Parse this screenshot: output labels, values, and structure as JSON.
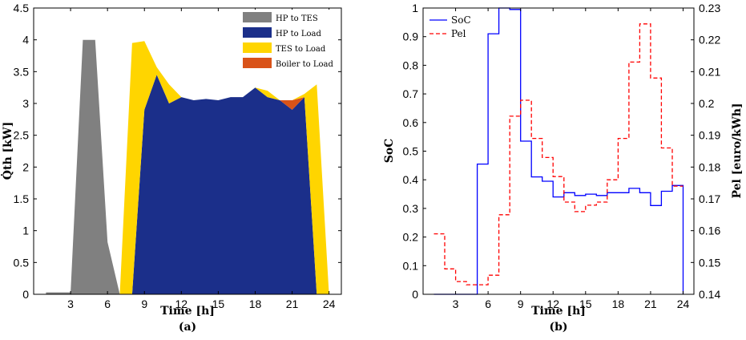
{
  "chart_data": [
    {
      "type": "area",
      "caption": "(a)",
      "xlabel": "Time [h]",
      "ylabel": "Q̇th [kW]",
      "xlim": [
        0,
        25
      ],
      "ylim": [
        0,
        4.5
      ],
      "xticks": [
        3,
        6,
        9,
        12,
        15,
        18,
        21,
        24
      ],
      "yticks": [
        0,
        0.5,
        1,
        1.5,
        2,
        2.5,
        3,
        3.5,
        4,
        4.5
      ],
      "legend_position": "top-right",
      "colors": {
        "hp_tes": "#808080",
        "hp_load": "#1b2f8a",
        "tes_load": "#ffd500",
        "boiler_load": "#d95319"
      },
      "series": [
        {
          "name": "HP to TES",
          "x": [
            1,
            2,
            3,
            4,
            5,
            6,
            7,
            8,
            9,
            10,
            11,
            12,
            13,
            14,
            15,
            16,
            17,
            18,
            19,
            20,
            21,
            22,
            23,
            24
          ],
          "values": [
            0.03,
            0.03,
            0.03,
            4.0,
            4.0,
            0.82,
            0,
            0,
            0,
            0,
            0,
            0,
            0,
            0,
            0,
            0,
            0,
            0,
            0,
            0,
            0,
            0,
            0,
            0
          ]
        },
        {
          "name": "HP to Load",
          "x": [
            1,
            2,
            3,
            4,
            5,
            6,
            7,
            8,
            9,
            10,
            11,
            12,
            13,
            14,
            15,
            16,
            17,
            18,
            19,
            20,
            21,
            22,
            23,
            24
          ],
          "values": [
            0,
            0,
            0,
            0,
            0,
            0,
            0,
            0,
            2.9,
            3.45,
            3.0,
            3.1,
            3.05,
            3.07,
            3.05,
            3.1,
            3.1,
            3.25,
            3.1,
            3.05,
            2.9,
            3.1,
            0,
            0
          ]
        },
        {
          "name": "TES to Load",
          "x": [
            1,
            2,
            3,
            4,
            5,
            6,
            7,
            8,
            9,
            10,
            11,
            12,
            13,
            14,
            15,
            16,
            17,
            18,
            19,
            20,
            21,
            22,
            23,
            24
          ],
          "values": [
            0,
            0,
            0,
            0,
            0,
            0,
            0,
            3.95,
            1.08,
            0.12,
            0.3,
            0,
            0,
            0,
            0,
            0,
            0,
            0,
            0.1,
            0,
            0,
            0.05,
            3.3,
            0
          ]
        },
        {
          "name": "Boiler to Load",
          "x": [
            1,
            2,
            3,
            4,
            5,
            6,
            7,
            8,
            9,
            10,
            11,
            12,
            13,
            14,
            15,
            16,
            17,
            18,
            19,
            20,
            21,
            22,
            23,
            24
          ],
          "values": [
            0,
            0,
            0,
            0,
            0,
            0,
            0,
            0,
            0,
            0,
            0,
            0,
            0,
            0,
            0,
            0,
            0,
            0,
            0,
            0,
            0.15,
            0,
            0,
            0
          ]
        }
      ]
    },
    {
      "type": "line",
      "caption": "(b)",
      "xlabel": "Time [h]",
      "ylabel": "SoC",
      "ylabel_right": "Pel [euro/kWh]",
      "xlim": [
        0,
        25
      ],
      "ylim": [
        0,
        1
      ],
      "ylim_right": [
        0.14,
        0.23
      ],
      "xticks": [
        3,
        6,
        9,
        12,
        15,
        18,
        21,
        24
      ],
      "yticks": [
        0,
        0.1,
        0.2,
        0.3,
        0.4,
        0.5,
        0.6,
        0.7,
        0.8,
        0.9,
        1
      ],
      "yticks_right": [
        "0.14",
        "0.15",
        "0.16",
        "0.17",
        "0.18",
        "0.19",
        "0.2",
        "0.21",
        "0.22",
        "0.23"
      ],
      "legend_position": "top-left",
      "series": [
        {
          "name": "SoC",
          "axis": "left",
          "style": "solid stairs",
          "color": "#0000ff",
          "x": [
            1,
            2,
            3,
            4,
            5,
            6,
            7,
            8,
            9,
            10,
            11,
            12,
            13,
            14,
            15,
            16,
            17,
            18,
            19,
            20,
            21,
            22,
            23,
            24
          ],
          "values": [
            0,
            0,
            0,
            0,
            0.455,
            0.91,
            1.0,
            0.995,
            0.535,
            0.41,
            0.395,
            0.34,
            0.355,
            0.345,
            0.35,
            0.345,
            0.355,
            0.355,
            0.37,
            0.355,
            0.31,
            0.36,
            0.38,
            0
          ]
        },
        {
          "name": "Pel",
          "axis": "right",
          "style": "dashed stairs",
          "color": "#ff0000",
          "x": [
            1,
            2,
            3,
            4,
            5,
            6,
            7,
            8,
            9,
            10,
            11,
            12,
            13,
            14,
            15,
            16,
            17,
            18,
            19,
            20,
            21,
            22,
            23,
            24
          ],
          "values": [
            0.159,
            0.148,
            0.144,
            0.143,
            0.143,
            0.146,
            0.165,
            0.196,
            0.201,
            0.189,
            0.183,
            0.177,
            0.169,
            0.166,
            0.168,
            0.169,
            0.176,
            0.189,
            0.213,
            0.225,
            0.208,
            0.186,
            0.174,
            0.174
          ]
        }
      ]
    }
  ]
}
